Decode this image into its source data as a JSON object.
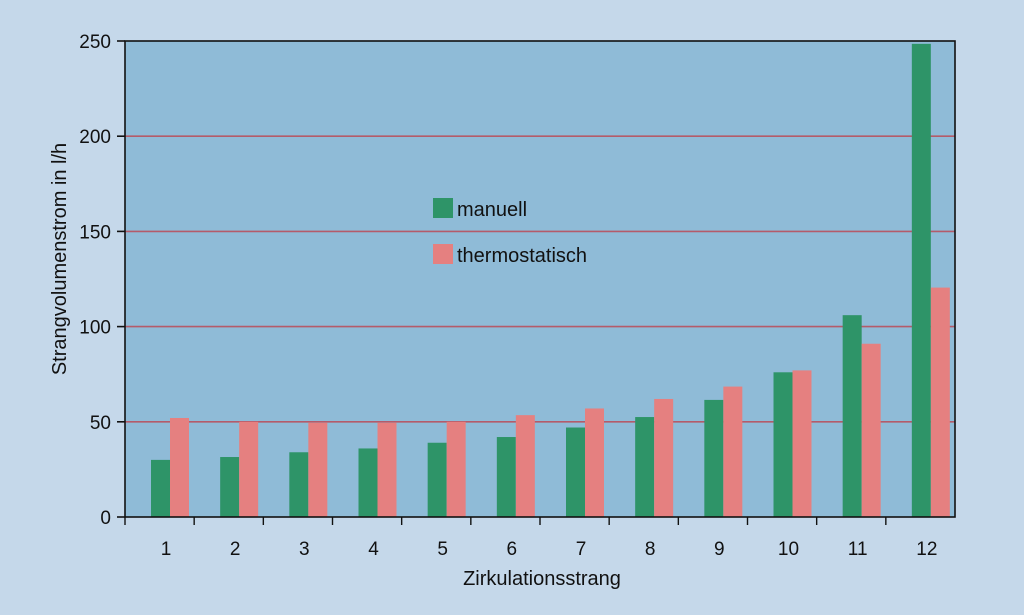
{
  "chart_data": {
    "type": "bar",
    "title": "",
    "xlabel": "Zirkulationsstrang",
    "ylabel": "Strangvolumenstrom in l/h",
    "categories": [
      "1",
      "2",
      "3",
      "4",
      "5",
      "6",
      "7",
      "8",
      "9",
      "10",
      "11",
      "12"
    ],
    "ylim": [
      0,
      250
    ],
    "yticks": [
      0,
      50,
      100,
      150,
      200,
      250
    ],
    "grid": true,
    "legend_position": "center-left",
    "series": [
      {
        "name": "manuell",
        "color": "#2e9468",
        "values": [
          30,
          31.5,
          34,
          36,
          39,
          42,
          47,
          52.5,
          61.5,
          76,
          106,
          248.5
        ]
      },
      {
        "name": "thermostatisch",
        "color": "#e58080",
        "values": [
          52,
          50,
          49.5,
          49.5,
          50,
          53.5,
          57,
          62,
          68.5,
          77,
          91,
          120.5
        ]
      }
    ],
    "colors": {
      "page_background": "#c5d8ea",
      "plot_background": "#8fbbd7",
      "gridline": "#b45b6a",
      "axis": "#111111"
    }
  }
}
